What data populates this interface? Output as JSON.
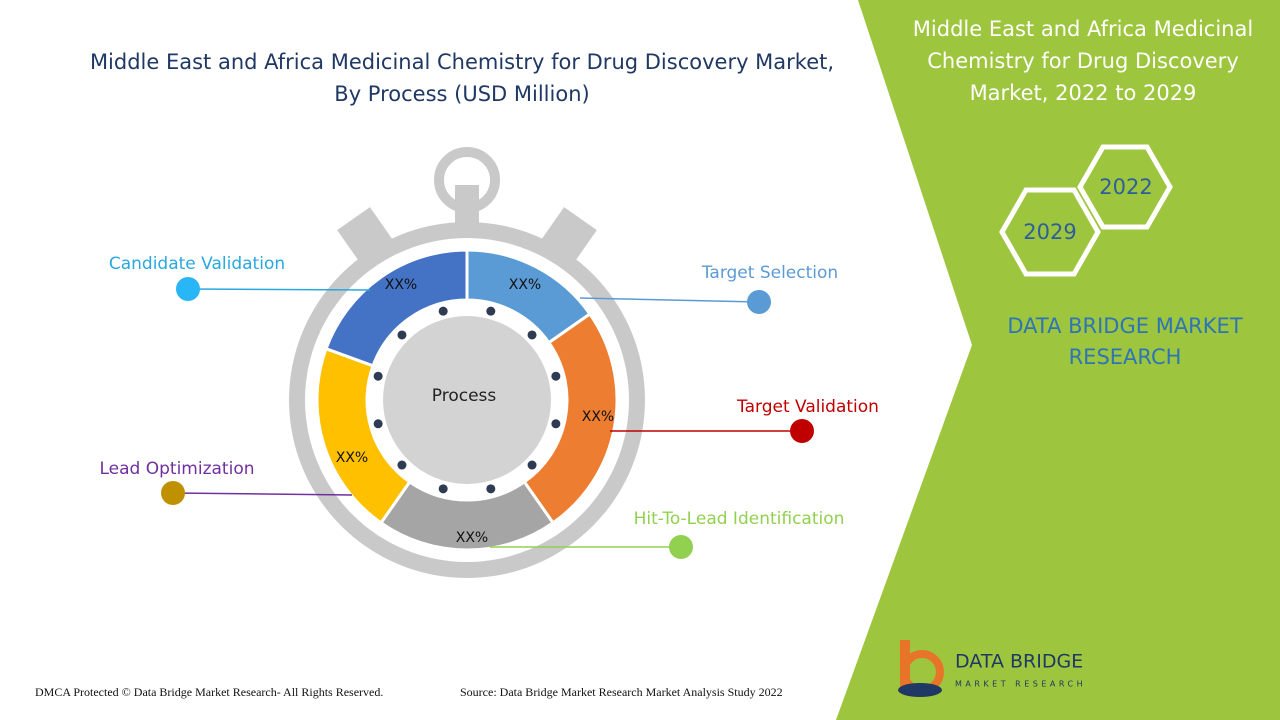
{
  "header": {
    "title_lines": [
      "Middle East and Africa Medicinal Chemistry for Drug Discovery Market,",
      "By Process (USD Million)"
    ]
  },
  "diagram": {
    "center_label": "Process",
    "segments": [
      {
        "label": "Target Selection",
        "value_label": "XX%",
        "color": "#5b9bd5",
        "label_color": "#5b9bd5",
        "dot_color": "#5b9bd5"
      },
      {
        "label": "Target Validation",
        "value_label": "XX%",
        "color": "#ed7d31",
        "label_color": "#c00000",
        "dot_color": "#c00000"
      },
      {
        "label": "Hit-To-Lead Identification",
        "value_label": "XX%",
        "color": "#a5a5a5",
        "label_color": "#92d050",
        "dot_color": "#92d050"
      },
      {
        "label": "Lead Optimization",
        "value_label": "XX%",
        "color": "#ffc000",
        "label_color": "#7030a0",
        "dot_color": "#bf9000"
      },
      {
        "label": "Candidate Validation",
        "value_label": "XX%",
        "color": "#4472c4",
        "label_color": "#29a8e0",
        "dot_color": "#29b6f6"
      }
    ]
  },
  "side_panel": {
    "title_lines": [
      "Middle East and Africa Medicinal",
      "Chemistry for Drug Discovery",
      "Market, 2022 to 2029"
    ],
    "years": [
      "2022",
      "2029"
    ],
    "brand_lines": [
      "DATA BRIDGE MARKET",
      "RESEARCH"
    ]
  },
  "logo": {
    "name": "DATA BRIDGE",
    "tagline": "MARKET RESEARCH"
  },
  "footer": {
    "copyright": "DMCA Protected © Data Bridge Market Research- All Rights Reserved.",
    "source": "Source: Data Bridge Market Research Market Analysis Study 2022"
  }
}
